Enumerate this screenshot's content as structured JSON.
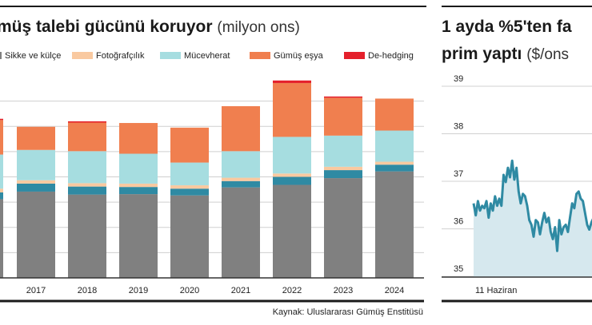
{
  "left": {
    "title": "müş talebi gücünü koruyor",
    "title_unit": "(milyon ons)",
    "source": "Kaynak: Uluslararası Gümüş Enstitüsü"
  },
  "right": {
    "title_line1": "1 ayda %5'ten fa",
    "title_line2": "prim yaptı",
    "title_unit": "($/ons"
  },
  "colors": {
    "sikke": "#808080",
    "foto": "#f9c9a0",
    "mucevher": "#a6dde0",
    "esya": "#f07f4f",
    "dehedging": "#e4202b",
    "extra": "#2f8aa3",
    "line": "#2f8aa3",
    "area": "#d6e8ee"
  },
  "chart_data": [
    {
      "type": "bar",
      "stacked": true,
      "categories": [
        "",
        "2017",
        "2018",
        "2019",
        "2020",
        "2021",
        "2022",
        "2023",
        "2024"
      ],
      "series": [
        {
          "name": "Sikke ve külçe",
          "key": "sikke",
          "values": [
            187,
            205,
            198,
            199,
            196,
            215,
            221,
            237,
            253
          ]
        },
        {
          "name": "",
          "key": "extra",
          "values": [
            16,
            19,
            19,
            17,
            16,
            15,
            19,
            19,
            16
          ]
        },
        {
          "name": "Fotoğrafçılık",
          "key": "foto",
          "values": [
            9,
            8,
            8,
            8,
            8,
            8,
            8,
            8,
            7
          ]
        },
        {
          "name": "Mücevherat",
          "key": "mucevher",
          "values": [
            81,
            72,
            76,
            71,
            54,
            63,
            87,
            74,
            74
          ]
        },
        {
          "name": "Gümüş eşya",
          "key": "esya",
          "values": [
            82,
            55,
            68,
            73,
            83,
            107,
            128,
            90,
            76
          ]
        },
        {
          "name": "De-hedging",
          "key": "dehedging",
          "values": [
            3,
            0,
            3,
            0,
            0,
            0,
            6,
            3,
            0
          ]
        }
      ],
      "legend": [
        "sikke",
        "foto",
        "mucevher",
        "esya",
        "dehedging"
      ],
      "ylim": [
        0,
        480
      ],
      "grid": true
    },
    {
      "type": "area",
      "x_tick_labels": [
        "11 Haziran"
      ],
      "y_ticks": [
        35,
        36,
        37,
        38,
        39
      ],
      "ylim": [
        34.8,
        39
      ],
      "y": [
        36.35,
        36.1,
        36.4,
        36.2,
        36.3,
        36.25,
        36.4,
        36.05,
        36.35,
        36.2,
        36.5,
        36.3,
        36.45,
        36.3,
        36.95,
        36.8,
        37.1,
        36.9,
        37.25,
        36.85,
        37.1,
        36.6,
        36.35,
        36.55,
        36.5,
        36.3,
        36.0,
        35.9,
        35.65,
        36.0,
        35.95,
        35.7,
        35.95,
        36.15,
        35.95,
        36.05,
        35.75,
        35.6,
        35.85,
        35.35,
        36.0,
        35.7,
        35.85,
        35.9,
        35.75,
        36.05,
        36.35,
        36.25,
        36.55,
        36.6,
        36.45,
        36.4,
        36.15,
        35.9,
        35.8,
        35.95,
        36.05
      ]
    }
  ]
}
